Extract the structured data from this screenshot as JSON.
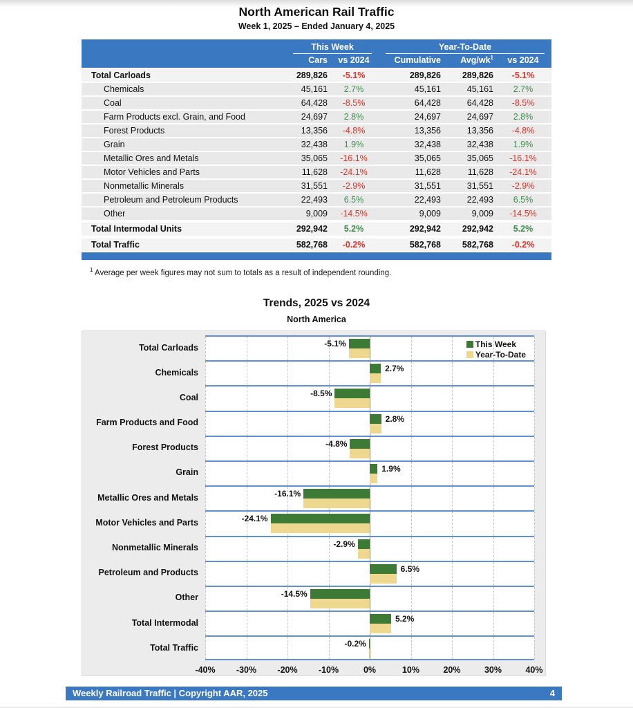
{
  "title": "North American Rail Traffic",
  "subtitle": "Week 1, 2025 – Ended January 4, 2025",
  "table": {
    "group_headers": {
      "this_week": "This Week",
      "ytd": "Year-To-Date"
    },
    "col_headers": {
      "cars": "Cars",
      "vs2024": "vs 2024",
      "cumulative": "Cumulative",
      "avgwk": "Avg/wk",
      "avgwk_sup": "1",
      "ytd_vs2024": "vs 2024"
    },
    "rows": [
      {
        "label": "Total Carloads",
        "bold": true,
        "cars": "289,826",
        "vs2024": "-5.1%",
        "cumulative": "289,826",
        "avgwk": "289,826",
        "ytd_vs2024": "-5.1%"
      },
      {
        "label": "Chemicals",
        "bold": false,
        "cars": "45,161",
        "vs2024": "2.7%",
        "cumulative": "45,161",
        "avgwk": "45,161",
        "ytd_vs2024": "2.7%"
      },
      {
        "label": "Coal",
        "bold": false,
        "cars": "64,428",
        "vs2024": "-8.5%",
        "cumulative": "64,428",
        "avgwk": "64,428",
        "ytd_vs2024": "-8.5%"
      },
      {
        "label": "Farm Products excl. Grain, and Food",
        "bold": false,
        "cars": "24,697",
        "vs2024": "2.8%",
        "cumulative": "24,697",
        "avgwk": "24,697",
        "ytd_vs2024": "2.8%"
      },
      {
        "label": "Forest Products",
        "bold": false,
        "cars": "13,356",
        "vs2024": "-4.8%",
        "cumulative": "13,356",
        "avgwk": "13,356",
        "ytd_vs2024": "-4.8%"
      },
      {
        "label": "Grain",
        "bold": false,
        "cars": "32,438",
        "vs2024": "1.9%",
        "cumulative": "32,438",
        "avgwk": "32,438",
        "ytd_vs2024": "1.9%"
      },
      {
        "label": "Metallic Ores and Metals",
        "bold": false,
        "cars": "35,065",
        "vs2024": "-16.1%",
        "cumulative": "35,065",
        "avgwk": "35,065",
        "ytd_vs2024": "-16.1%"
      },
      {
        "label": "Motor Vehicles and Parts",
        "bold": false,
        "cars": "11,628",
        "vs2024": "-24.1%",
        "cumulative": "11,628",
        "avgwk": "11,628",
        "ytd_vs2024": "-24.1%"
      },
      {
        "label": "Nonmetallic Minerals",
        "bold": false,
        "cars": "31,551",
        "vs2024": "-2.9%",
        "cumulative": "31,551",
        "avgwk": "31,551",
        "ytd_vs2024": "-2.9%"
      },
      {
        "label": "Petroleum and Petroleum Products",
        "bold": false,
        "cars": "22,493",
        "vs2024": "6.5%",
        "cumulative": "22,493",
        "avgwk": "22,493",
        "ytd_vs2024": "6.5%"
      },
      {
        "label": "Other",
        "bold": false,
        "cars": "9,009",
        "vs2024": "-14.5%",
        "cumulative": "9,009",
        "avgwk": "9,009",
        "ytd_vs2024": "-14.5%"
      },
      {
        "label": "Total Intermodal Units",
        "bold": true,
        "cars": "292,942",
        "vs2024": "5.2%",
        "cumulative": "292,942",
        "avgwk": "292,942",
        "ytd_vs2024": "5.2%"
      },
      {
        "label": "Total Traffic",
        "bold": true,
        "cars": "582,768",
        "vs2024": "-0.2%",
        "cumulative": "582,768",
        "avgwk": "582,768",
        "ytd_vs2024": "-0.2%"
      }
    ],
    "footnote_sup": "1",
    "footnote": "Average per week figures may not sum to totals as a result of independent rounding."
  },
  "chart": {
    "title": "Trends, 2025 vs 2024",
    "subtitle": "North America",
    "legend": [
      {
        "label": "This Week",
        "color": "#3d7a35"
      },
      {
        "label": "Year-To-Date",
        "color": "#eed88f"
      }
    ]
  },
  "chart_data": {
    "type": "bar",
    "orientation": "horizontal",
    "title": "Trends, 2025 vs 2024",
    "subtitle": "North America",
    "categories": [
      "Total Carloads",
      "Chemicals",
      "Coal",
      "Farm Products and Food",
      "Forest Products",
      "Grain",
      "Metallic Ores and Metals",
      "Motor Vehicles and Parts",
      "Nonmetallic Minerals",
      "Petroleum and Products",
      "Other",
      "Total Intermodal",
      "Total Traffic"
    ],
    "series": [
      {
        "name": "This Week",
        "values": [
          -5.1,
          2.7,
          -8.5,
          2.8,
          -4.8,
          1.9,
          -16.1,
          -24.1,
          -2.9,
          6.5,
          -14.5,
          5.2,
          -0.2
        ]
      },
      {
        "name": "Year-To-Date",
        "values": [
          -5.1,
          2.7,
          -8.5,
          2.8,
          -4.8,
          1.9,
          -16.1,
          -24.1,
          -2.9,
          6.5,
          -14.5,
          5.2,
          -0.2
        ]
      }
    ],
    "data_labels": [
      "-5.1%",
      "2.7%",
      "-8.5%",
      "2.8%",
      "-4.8%",
      "1.9%",
      "-16.1%",
      "-24.1%",
      "-2.9%",
      "6.5%",
      "-14.5%",
      "5.2%",
      "-0.2%"
    ],
    "xticks": [
      "-40%",
      "-30%",
      "-20%",
      "-10%",
      "0%",
      "10%",
      "20%",
      "30%",
      "40%"
    ],
    "xlim": [
      -40,
      40
    ],
    "grid": "vertical-dashed",
    "legend_position": "top-right-inside",
    "colors": {
      "this_week": "#3d7a35",
      "year_to_date": "#eed88f",
      "separator": "#5f8fd4",
      "positive_text": "#3e8e4d",
      "negative_text": "#e0352b",
      "accent_blue": "#3b78c2"
    }
  },
  "footer": {
    "text": "Weekly Railroad Traffic | Copyright AAR, 2025",
    "page": "4"
  }
}
